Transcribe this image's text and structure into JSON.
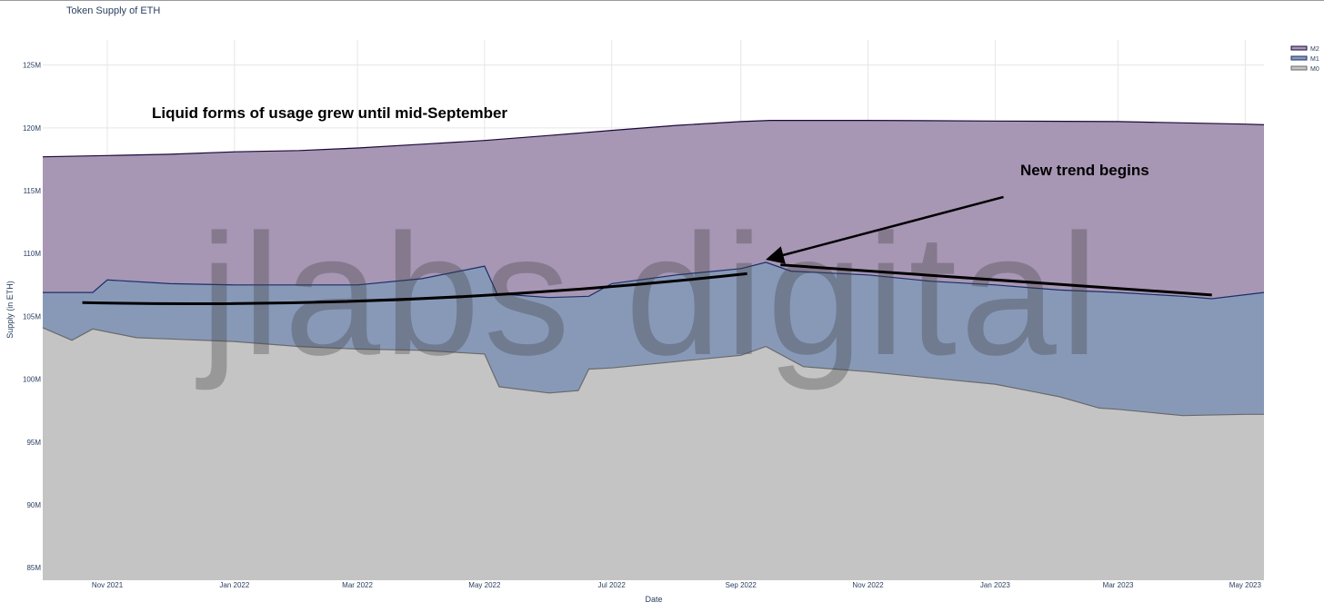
{
  "chart_data": {
    "type": "area",
    "title": "Token Supply of ETH",
    "xlabel": "Date",
    "ylabel": "Supply (in ETH)",
    "x_ticks": [
      "Nov 2021",
      "Jan 2022",
      "Mar 2022",
      "May 2022",
      "Jul 2022",
      "Sep 2022",
      "Nov 2022",
      "Jan 2023",
      "Mar 2023",
      "May 2023"
    ],
    "y_ticks": [
      "85M",
      "90M",
      "95M",
      "100M",
      "105M",
      "110M",
      "115M",
      "120M",
      "125M"
    ],
    "ylim_millions": [
      84,
      127
    ],
    "grid": true,
    "legend_position": "top-right",
    "stacking": "cumulative",
    "series": [
      {
        "name": "M2",
        "color": "#a796b4",
        "line_color": "#1a0a3a",
        "points": [
          [
            "2021-10-01",
            117.7
          ],
          [
            "2021-11-01",
            117.8
          ],
          [
            "2021-12-01",
            117.9
          ],
          [
            "2022-01-01",
            118.1
          ],
          [
            "2022-02-01",
            118.2
          ],
          [
            "2022-03-01",
            118.4
          ],
          [
            "2022-04-01",
            118.7
          ],
          [
            "2022-05-01",
            119.0
          ],
          [
            "2022-06-01",
            119.4
          ],
          [
            "2022-07-01",
            119.8
          ],
          [
            "2022-08-01",
            120.2
          ],
          [
            "2022-09-01",
            120.5
          ],
          [
            "2022-09-15",
            120.6
          ],
          [
            "2022-11-01",
            120.6
          ],
          [
            "2023-01-01",
            120.55
          ],
          [
            "2023-03-01",
            120.5
          ],
          [
            "2023-05-01",
            120.3
          ],
          [
            "2023-05-10",
            120.25
          ]
        ]
      },
      {
        "name": "M1",
        "color": "#8899b8",
        "line_color": "#1a2f6a",
        "points": [
          [
            "2021-10-01",
            106.9
          ],
          [
            "2021-10-25",
            106.9
          ],
          [
            "2021-11-01",
            107.9
          ],
          [
            "2021-12-01",
            107.6
          ],
          [
            "2022-01-01",
            107.5
          ],
          [
            "2022-02-01",
            107.5
          ],
          [
            "2022-03-01",
            107.5
          ],
          [
            "2022-04-01",
            108.0
          ],
          [
            "2022-05-01",
            109.0
          ],
          [
            "2022-05-07",
            106.8
          ],
          [
            "2022-06-01",
            106.5
          ],
          [
            "2022-06-20",
            106.6
          ],
          [
            "2022-07-01",
            107.6
          ],
          [
            "2022-08-01",
            108.3
          ],
          [
            "2022-09-01",
            108.8
          ],
          [
            "2022-09-13",
            109.3
          ],
          [
            "2022-09-25",
            108.6
          ],
          [
            "2022-11-01",
            108.3
          ],
          [
            "2022-12-01",
            107.8
          ],
          [
            "2023-01-01",
            107.5
          ],
          [
            "2023-02-01",
            107.1
          ],
          [
            "2023-03-01",
            106.9
          ],
          [
            "2023-04-01",
            106.6
          ],
          [
            "2023-04-15",
            106.4
          ],
          [
            "2023-05-10",
            106.9
          ]
        ]
      },
      {
        "name": "M0",
        "color": "#c4c4c4",
        "line_color": "#6a6a6a",
        "points": [
          [
            "2021-10-01",
            104.1
          ],
          [
            "2021-10-15",
            103.1
          ],
          [
            "2021-10-25",
            104.0
          ],
          [
            "2021-11-15",
            103.3
          ],
          [
            "2021-12-01",
            103.2
          ],
          [
            "2022-01-01",
            103.0
          ],
          [
            "2022-02-01",
            102.6
          ],
          [
            "2022-03-01",
            102.4
          ],
          [
            "2022-04-01",
            102.3
          ],
          [
            "2022-05-01",
            102.0
          ],
          [
            "2022-05-08",
            99.4
          ],
          [
            "2022-06-01",
            98.9
          ],
          [
            "2022-06-15",
            99.1
          ],
          [
            "2022-06-20",
            100.8
          ],
          [
            "2022-07-01",
            100.9
          ],
          [
            "2022-08-01",
            101.4
          ],
          [
            "2022-09-01",
            101.9
          ],
          [
            "2022-09-13",
            102.6
          ],
          [
            "2022-10-01",
            101.0
          ],
          [
            "2022-11-01",
            100.6
          ],
          [
            "2022-12-01",
            100.1
          ],
          [
            "2023-01-01",
            99.6
          ],
          [
            "2023-02-01",
            98.6
          ],
          [
            "2023-02-20",
            97.7
          ],
          [
            "2023-03-01",
            97.6
          ],
          [
            "2023-04-01",
            97.1
          ],
          [
            "2023-05-01",
            97.2
          ],
          [
            "2023-05-10",
            97.2
          ]
        ]
      }
    ],
    "annotations": [
      {
        "text": "Liquid forms of usage grew until mid-September"
      },
      {
        "text": "New trend begins"
      }
    ],
    "trend_lines": [
      {
        "from": [
          "2021-10-20",
          106.1
        ],
        "to": [
          "2022-09-04",
          108.4
        ]
      },
      {
        "from": [
          "2022-09-20",
          109.1
        ],
        "to": [
          "2023-04-15",
          106.7
        ]
      }
    ],
    "arrow": {
      "from": [
        "2023-01-05",
        114.5
      ],
      "to": [
        "2022-09-15",
        109.6
      ]
    },
    "watermark": "jlabs digital"
  }
}
